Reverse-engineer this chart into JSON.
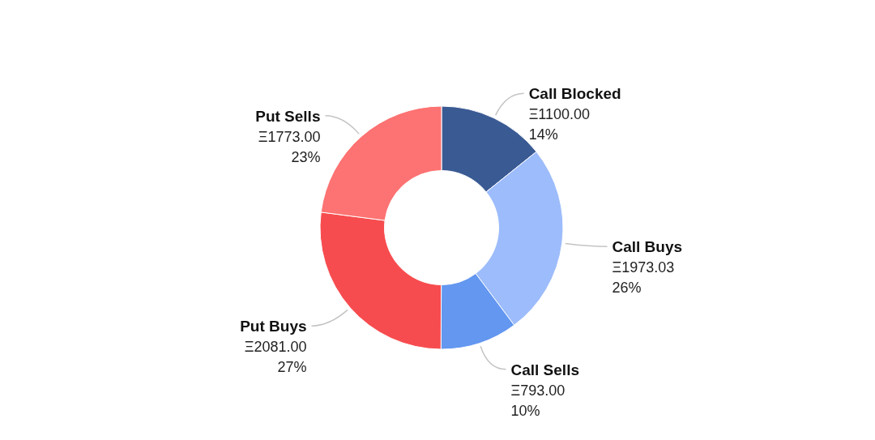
{
  "chart_data": {
    "type": "donut",
    "categories": [
      "Call Blocked",
      "Call Buys",
      "Call Sells",
      "Put Buys",
      "Put Sells"
    ],
    "values": [
      1100.0,
      1973.03,
      793.0,
      2081.0,
      1773.0
    ],
    "colors": [
      "#3a5a93",
      "#9dbcfb",
      "#6397f0",
      "#f74c4f",
      "#fd7272"
    ],
    "value_labels": [
      "Ξ1100.00\n14%",
      "Ξ1973.03\n26%",
      "Ξ793.00\n10%",
      "Ξ2081.00\n27%",
      "Ξ1773.00\n23%"
    ]
  }
}
